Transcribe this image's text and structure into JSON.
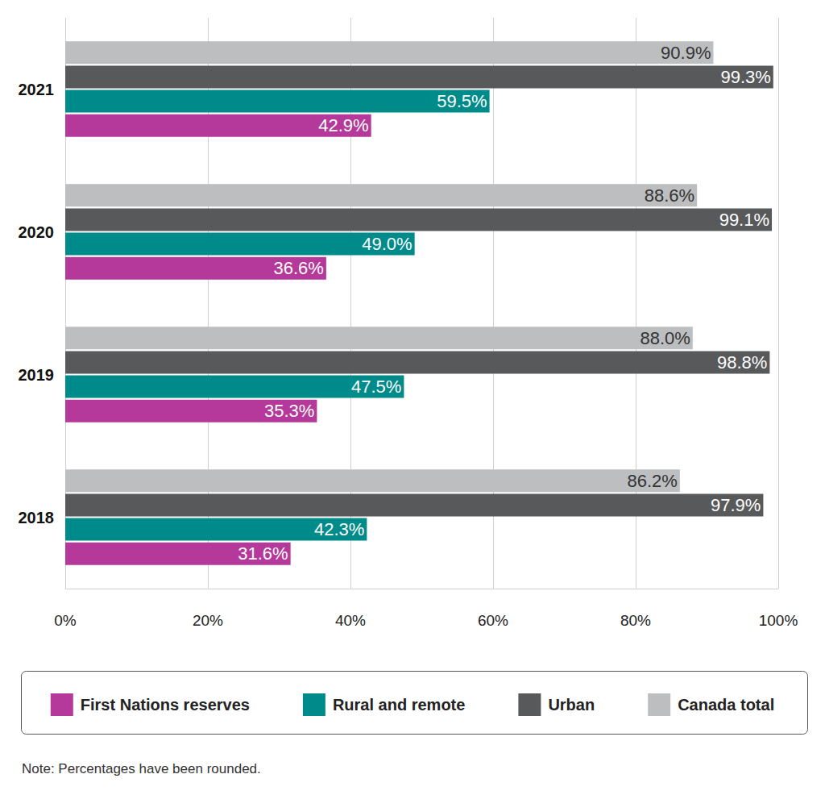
{
  "chart_data": {
    "type": "bar",
    "orientation": "horizontal",
    "categories": [
      "2018",
      "2019",
      "2020",
      "2021"
    ],
    "series": [
      {
        "name": "First Nations reserves",
        "color": "#b5399b",
        "values": [
          31.6,
          35.3,
          36.6,
          42.9
        ],
        "value_labels": [
          "31.6%",
          "35.3%",
          "36.6%",
          "42.9%"
        ]
      },
      {
        "name": "Rural and remote",
        "color": "#008b8b",
        "values": [
          42.3,
          47.5,
          49.0,
          59.5
        ],
        "value_labels": [
          "42.3%",
          "47.5%",
          "49.0%",
          "59.5%"
        ]
      },
      {
        "name": "Urban",
        "color": "#58595b",
        "values": [
          97.9,
          98.8,
          99.1,
          99.3
        ],
        "value_labels": [
          "97.9%",
          "98.8%",
          "99.1%",
          "99.3%"
        ]
      },
      {
        "name": "Canada total",
        "color": "#bcbec0",
        "values": [
          86.2,
          88.0,
          88.6,
          90.9
        ],
        "value_labels": [
          "86.2%",
          "88.0%",
          "88.6%",
          "90.9%"
        ]
      }
    ],
    "xlim": [
      0,
      100
    ],
    "xticks": [
      {
        "value": 0,
        "label": "0%"
      },
      {
        "value": 20,
        "label": "20%"
      },
      {
        "value": 40,
        "label": "40%"
      },
      {
        "value": 60,
        "label": "60%"
      },
      {
        "value": 80,
        "label": "80%"
      },
      {
        "value": 100,
        "label": "100%"
      }
    ],
    "grid": true,
    "data_labels": true,
    "legend": "bottom",
    "note": "Note: Percentages have been rounded."
  }
}
